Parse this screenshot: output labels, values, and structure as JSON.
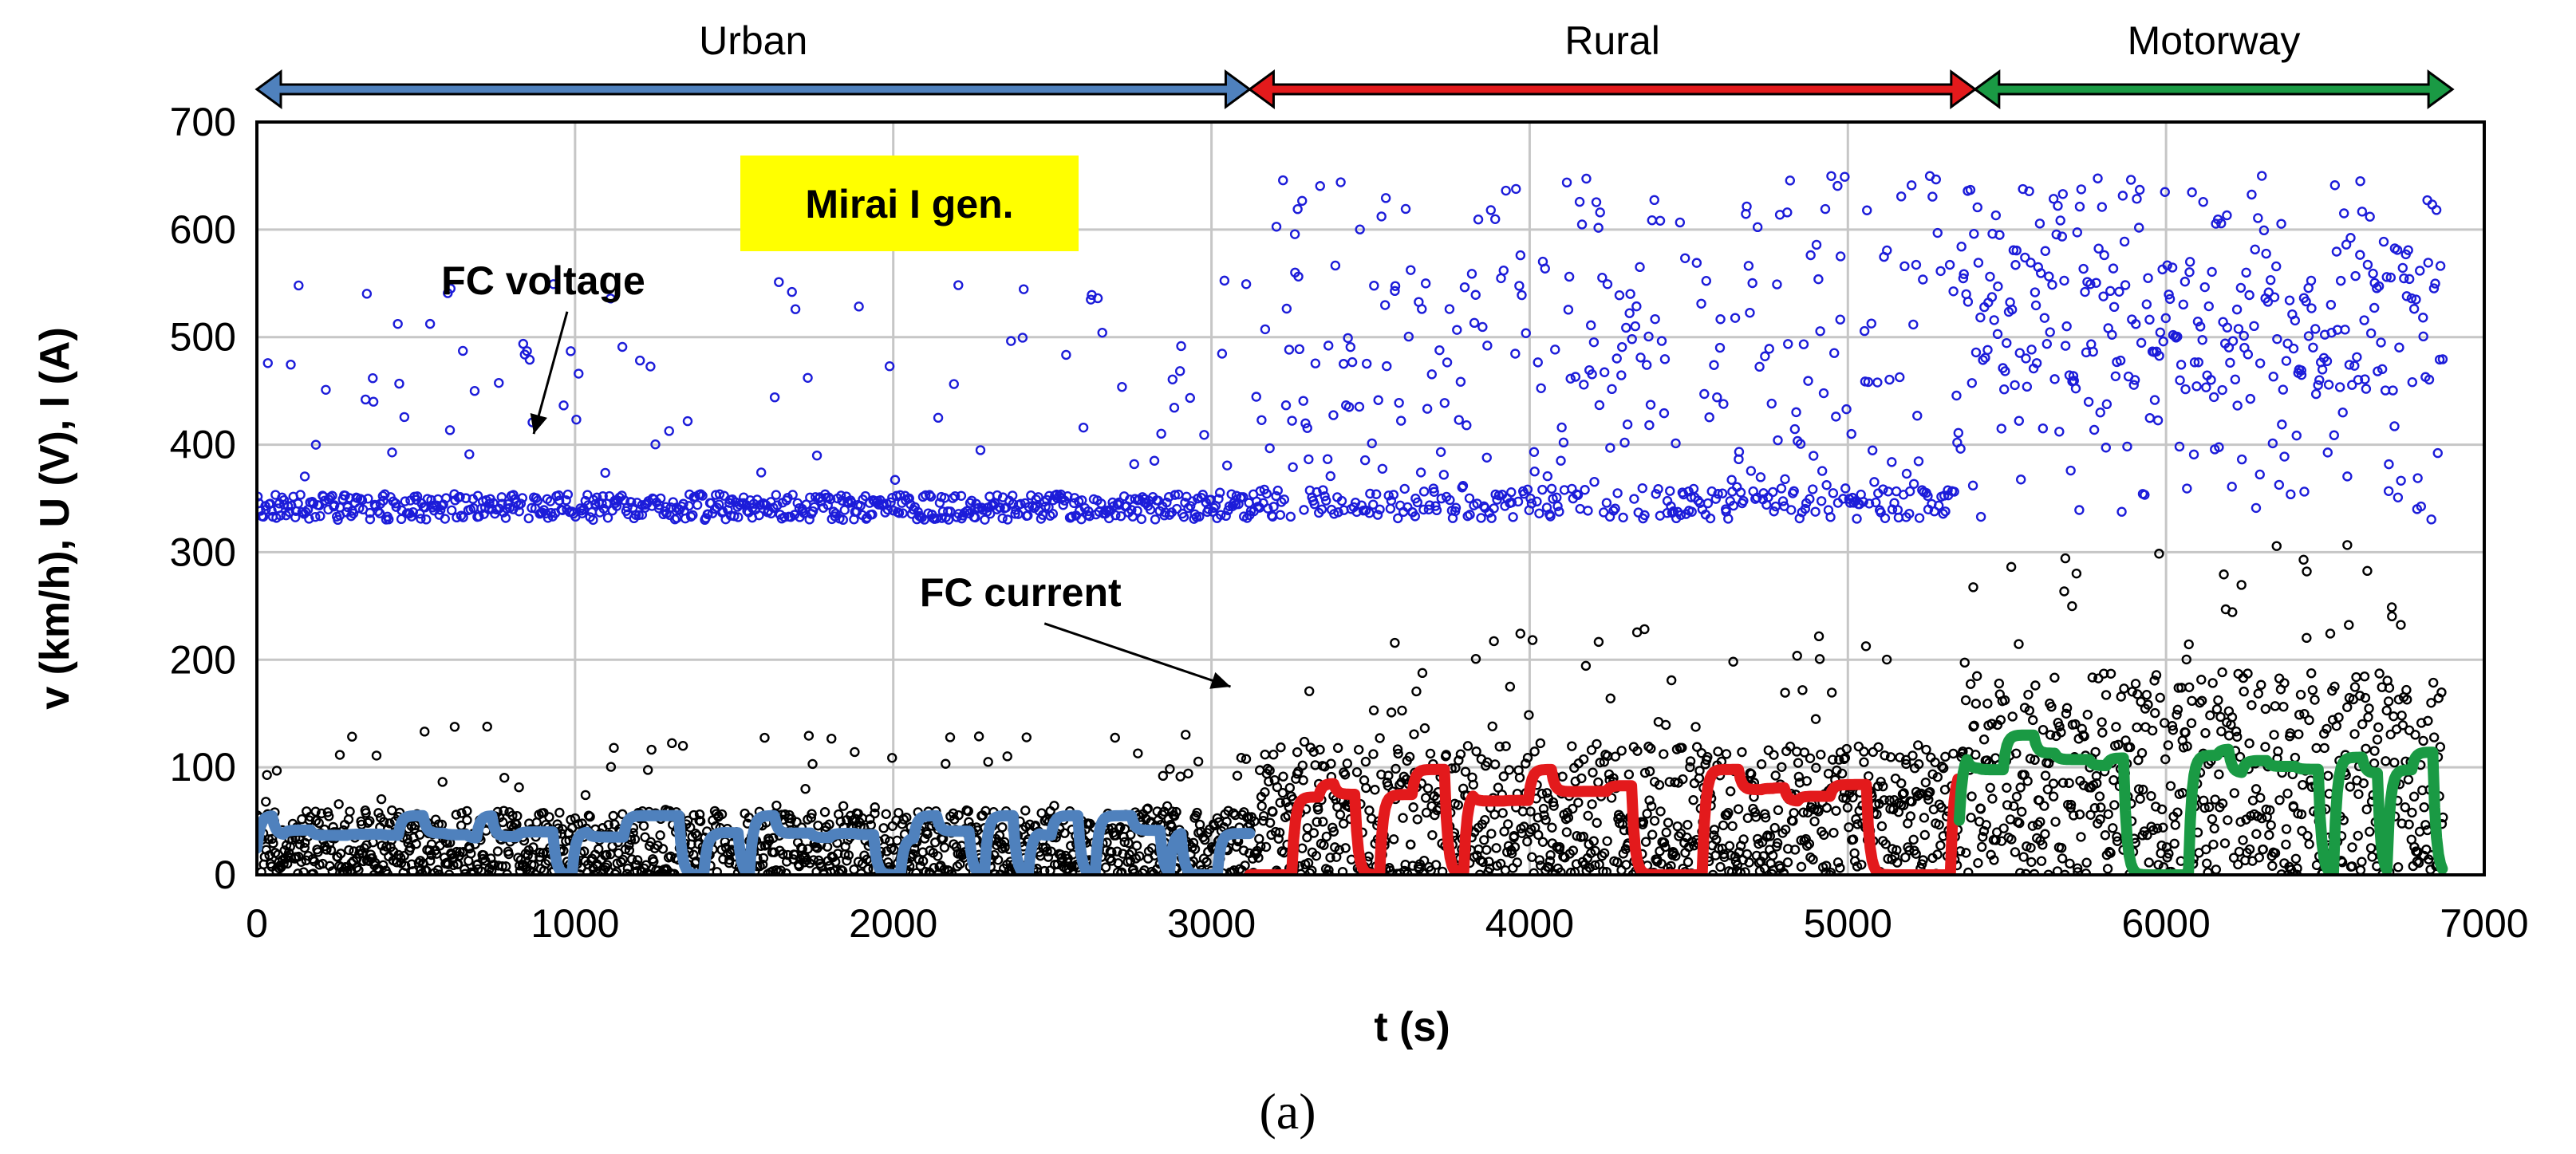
{
  "chart_data": {
    "type": "scatter",
    "title": "Mirai I gen.",
    "caption": "(a)",
    "xlabel": "t (s)",
    "ylabel": "v (km/h), U (V), I (A)",
    "xlim": [
      0,
      7000
    ],
    "ylim": [
      0,
      700
    ],
    "xticks": [
      0,
      1000,
      2000,
      3000,
      4000,
      5000,
      6000,
      7000
    ],
    "yticks": [
      0,
      100,
      200,
      300,
      400,
      500,
      600,
      700
    ],
    "grid": true,
    "phases": [
      {
        "name": "Urban",
        "start": 0,
        "end": 3120,
        "color": "#4f81bd"
      },
      {
        "name": "Rural",
        "start": 3120,
        "end": 5400,
        "color": "#e31a1c"
      },
      {
        "name": "Motorway",
        "start": 5400,
        "end": 6900,
        "color": "#1a9a44"
      }
    ],
    "annotations": [
      {
        "text": "FC voltage",
        "x": 900,
        "y": 540,
        "target_x": 870,
        "target_y": 410
      },
      {
        "text": "FC current",
        "x": 2400,
        "y": 250,
        "target_x": 3060,
        "target_y": 175
      }
    ],
    "series": [
      {
        "name": "FC voltage",
        "marker": "open-circle",
        "color": "#1c1cd9",
        "segments": [
          {
            "t_start": 0,
            "t_end": 3150,
            "baseline": 342,
            "spread": 12,
            "outlier_rate": 0.12,
            "outlier_min": 350,
            "outlier_max": 560
          },
          {
            "t_start": 3150,
            "t_end": 5350,
            "baseline": 345,
            "spread": 14,
            "outlier_rate": 0.5,
            "outlier_min": 350,
            "outlier_max": 650
          },
          {
            "t_start": 5350,
            "t_end": 6870,
            "baseline": 510,
            "spread": 60,
            "outlier_rate": 0.55,
            "outlier_min": 330,
            "outlier_max": 650
          }
        ]
      },
      {
        "name": "FC current",
        "marker": "open-circle",
        "color": "#000000",
        "segments": [
          {
            "t_start": 0,
            "t_end": 3150,
            "low": 0,
            "high": 60,
            "outlier_max": 140
          },
          {
            "t_start": 3150,
            "t_end": 5350,
            "low": 0,
            "high": 120,
            "outlier_max": 230
          },
          {
            "t_start": 5350,
            "t_end": 6870,
            "low": 0,
            "high": 190,
            "outlier_max": 320
          }
        ]
      },
      {
        "name": "Vehicle speed",
        "line": true,
        "segments": [
          {
            "phase": "Urban",
            "color": "#4f81bd",
            "t_start": 0,
            "t_end": 3120,
            "typical": 42,
            "max": 55
          },
          {
            "phase": "Rural",
            "color": "#e31a1c",
            "t_start": 3120,
            "t_end": 5350,
            "typical": 85,
            "max": 98
          },
          {
            "phase": "Motorway",
            "color": "#1a9a44",
            "t_start": 5350,
            "t_end": 6870,
            "typical": 118,
            "max": 130
          }
        ]
      }
    ]
  }
}
